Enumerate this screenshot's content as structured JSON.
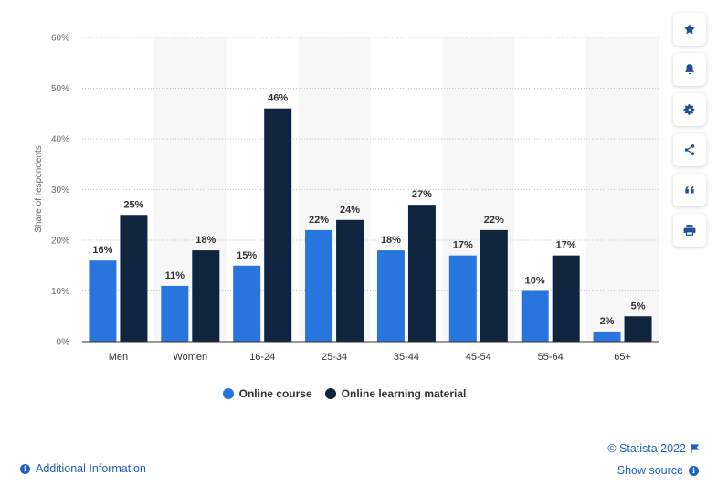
{
  "chart_data": {
    "type": "bar",
    "categories": [
      "Men",
      "Women",
      "16-24",
      "25-34",
      "35-44",
      "45-54",
      "55-64",
      "65+"
    ],
    "series": [
      {
        "name": "Online course",
        "color": "#2876dd",
        "values": [
          16,
          11,
          15,
          22,
          18,
          17,
          10,
          2
        ]
      },
      {
        "name": "Online learning material",
        "color": "#0f243e",
        "values": [
          25,
          18,
          46,
          24,
          27,
          22,
          17,
          5
        ]
      }
    ],
    "title": "",
    "xlabel": "",
    "ylabel": "Share of respondents",
    "ylim": [
      0,
      60
    ],
    "yticks": [
      "0%",
      "10%",
      "20%",
      "30%",
      "40%",
      "50%",
      "60%"
    ],
    "value_suffix": "%",
    "grid": true,
    "legend_position": "bottom"
  },
  "legend": {
    "items": [
      {
        "label": "Online course",
        "color": "#2876dd"
      },
      {
        "label": "Online learning material",
        "color": "#0f243e"
      }
    ]
  },
  "toolbar": {
    "icons": [
      "star-icon",
      "bell-icon",
      "gear-icon",
      "share-icon",
      "quote-icon",
      "print-icon"
    ]
  },
  "footer": {
    "additional_info": "Additional Information",
    "credit": "© Statista 2022",
    "show_source": "Show source"
  }
}
